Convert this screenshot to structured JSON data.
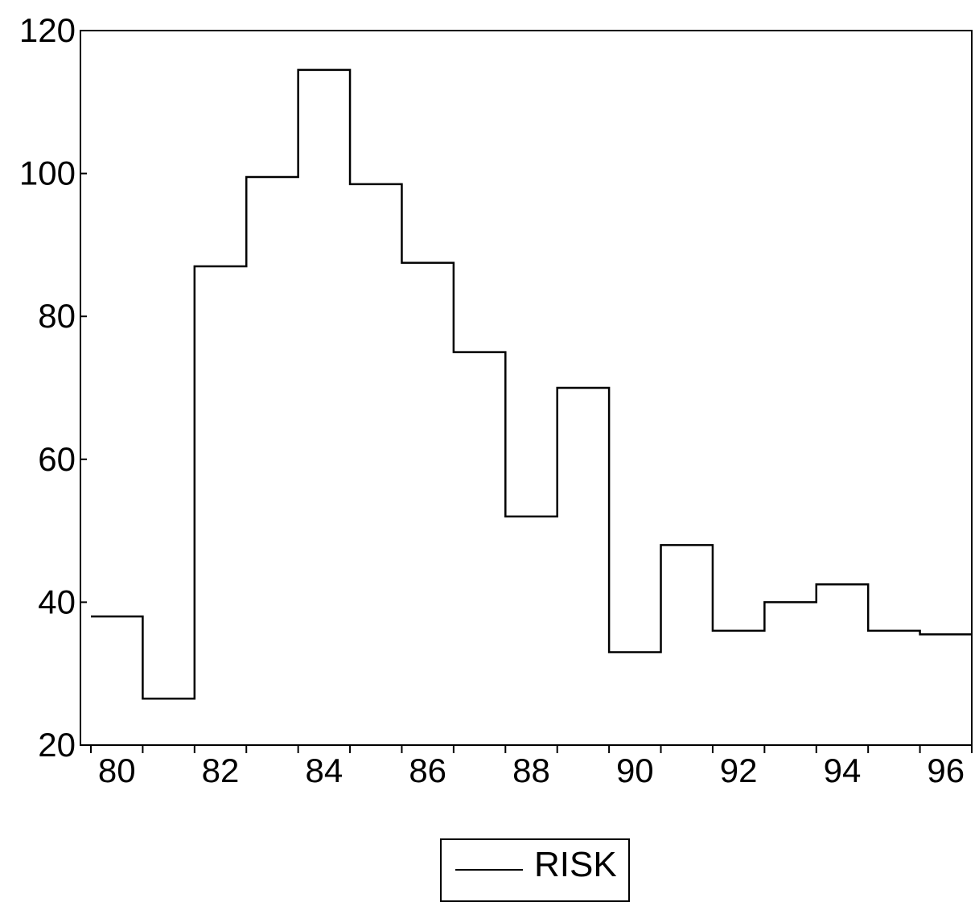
{
  "chart_data": {
    "type": "line",
    "title": "",
    "xlabel": "",
    "ylabel": "",
    "ylim": [
      20,
      120
    ],
    "xlim": [
      1980,
      1996
    ],
    "y_ticks": [
      20,
      40,
      60,
      80,
      100,
      120
    ],
    "y_tick_labels": [
      "20",
      "40",
      "60",
      "80",
      "100",
      "120"
    ],
    "x_ticks": [
      1980,
      1982,
      1984,
      1986,
      1988,
      1990,
      1992,
      1994,
      1996
    ],
    "x_tick_labels": [
      "80",
      "82",
      "84",
      "86",
      "88",
      "90",
      "92",
      "94",
      "96"
    ],
    "grid": false,
    "legend_position": "bottom-center",
    "line_style": "step",
    "series": [
      {
        "name": "RISK",
        "color": "#000000",
        "x": [
          1980,
          1981,
          1982,
          1983,
          1984,
          1985,
          1986,
          1987,
          1988,
          1989,
          1990,
          1991,
          1992,
          1993,
          1994,
          1995,
          1996
        ],
        "values": [
          38,
          26.5,
          87,
          99.5,
          114.5,
          98.5,
          87.5,
          75,
          52,
          70,
          33,
          48,
          36,
          40,
          42.5,
          36,
          35.5
        ]
      }
    ]
  },
  "legend": {
    "label": "RISK"
  }
}
